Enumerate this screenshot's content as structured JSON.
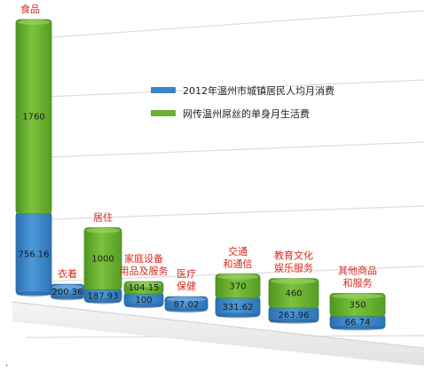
{
  "chart_data": {
    "type": "bar",
    "stacked": true,
    "categories": [
      "食品",
      "衣着",
      "居住",
      "家庭设备用品及服务",
      "医疗保健",
      "交通和通信",
      "教育文化娱乐服务",
      "其他商品和服务"
    ],
    "category_label_lines": [
      [
        "食品"
      ],
      [
        "衣着"
      ],
      [
        "居住"
      ],
      [
        "家庭设备",
        "用品及服务"
      ],
      [
        "医疗",
        "保健"
      ],
      [
        "交通",
        "和通信"
      ],
      [
        "教育文化",
        "娱乐服务"
      ],
      [
        "其他商品",
        "和服务"
      ]
    ],
    "series": [
      {
        "name": "2012年温州市城镇居民人均月消费",
        "values": [
          756.16,
          200.36,
          187.93,
          100,
          87.02,
          331.62,
          263.96,
          66.74
        ],
        "labels": [
          "756.16",
          "200.36",
          "187.93",
          "100",
          "87.02",
          "331.62",
          "263.96",
          "66.74"
        ],
        "color": "#3b86c8"
      },
      {
        "name": "网传温州屌丝的单身月生活费",
        "values": [
          1760,
          0,
          1000,
          104.15,
          0,
          370,
          460,
          350
        ],
        "labels": [
          "1760",
          "",
          "1000",
          "104.15",
          "",
          "370",
          "460",
          "350"
        ],
        "color": "#6ab02f"
      }
    ],
    "legend_position": "top-right",
    "grid": true
  },
  "colors": {
    "blue": "#3b86c8",
    "green": "#6ab02f",
    "label": "#d8281c"
  }
}
